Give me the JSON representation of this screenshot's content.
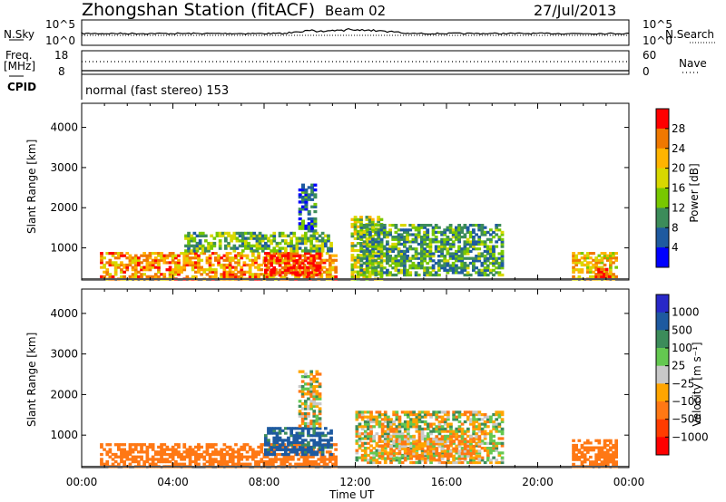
{
  "header": {
    "station": "Zhongshan Station (fitACF)",
    "beam": "Beam 02",
    "date": "27/Jul/2013"
  },
  "params": {
    "nsky_label": "N.Sky",
    "nsky_top": "10^5",
    "nsky_bottom": "10^0",
    "nsearch_label": "N.Search",
    "nsearch_top": "10^5",
    "nsearch_bottom": "10^0",
    "freq_label_1": "Freq.",
    "freq_label_2": "[MHz]",
    "freq_top": "18",
    "freq_bottom": "8",
    "nave_label": "Nave",
    "nave_top": "60",
    "nave_bottom": "0",
    "cpid_label": "CPID",
    "cpid_value": "normal (fast stereo) 153"
  },
  "panels": {
    "power": {
      "ylabel": "Slant Range [km]",
      "cbar_label": "Power [dB]",
      "cbar_ticks": [
        "28",
        "24",
        "20",
        "16",
        "12",
        "8",
        "4"
      ],
      "cbar_colors": [
        "#ff0000",
        "#f07800",
        "#ffb400",
        "#d8d800",
        "#78c800",
        "#3c8c5a",
        "#1e5aa0",
        "#0000ff"
      ]
    },
    "velocity": {
      "ylabel": "Slant Range [km]",
      "cbar_label": "Velocity [m s⁻¹]",
      "cbar_ticks": [
        "1000",
        "500",
        "100",
        "25",
        "−25",
        "−100",
        "−500",
        "−1000"
      ],
      "cbar_colors": [
        "#2828c8",
        "#1e5aa0",
        "#3c8c5a",
        "#64c850",
        "#c8c8c8",
        "#ffa500",
        "#ff7814",
        "#ff3c00",
        "#ff0000"
      ]
    },
    "xlabel": "Time UT"
  },
  "chart_data": [
    {
      "type": "heatmap",
      "title": "Power [dB]",
      "xlabel": "Time UT",
      "ylabel": "Slant Range [km]",
      "x_ticks": [
        "00:00",
        "04:00",
        "08:00",
        "12:00",
        "16:00",
        "20:00",
        "00:00"
      ],
      "y_ticks": [
        1000,
        2000,
        3000,
        4000
      ],
      "ylim": [
        200,
        4600
      ],
      "color_scale": [
        0,
        30
      ],
      "color_ticks": [
        4,
        8,
        12,
        16,
        20,
        24,
        28
      ],
      "regions": [
        {
          "t": [
            0.8,
            11.2
          ],
          "r": [
            200,
            900
          ],
          "value": 22
        },
        {
          "t": [
            8.0,
            10.5
          ],
          "r": [
            300,
            900
          ],
          "value": 28
        },
        {
          "t": [
            4.5,
            11.0
          ],
          "r": [
            900,
            1400
          ],
          "value": 12
        },
        {
          "t": [
            9.5,
            10.3
          ],
          "r": [
            1400,
            2600
          ],
          "value": 8
        },
        {
          "t": [
            11.8,
            13.2
          ],
          "r": [
            200,
            1800
          ],
          "value": 16
        },
        {
          "t": [
            12.2,
            18.5
          ],
          "r": [
            300,
            1600
          ],
          "value": 10
        },
        {
          "t": [
            21.5,
            23.5
          ],
          "r": [
            200,
            900
          ],
          "value": 20
        },
        {
          "t": [
            22.5,
            23.2
          ],
          "r": [
            200,
            500
          ],
          "value": 28
        }
      ]
    },
    {
      "type": "heatmap",
      "title": "Velocity [m s-1]",
      "xlabel": "Time UT",
      "ylabel": "Slant Range [km]",
      "x_ticks": [
        "00:00",
        "04:00",
        "08:00",
        "12:00",
        "16:00",
        "20:00",
        "00:00"
      ],
      "y_ticks": [
        1000,
        2000,
        3000,
        4000
      ],
      "ylim": [
        200,
        4600
      ],
      "color_ticks": [
        1000,
        500,
        100,
        25,
        -25,
        -100,
        -500,
        -1000
      ],
      "regions": [
        {
          "t": [
            0.8,
            11.2
          ],
          "r": [
            200,
            800
          ],
          "value": -300
        },
        {
          "t": [
            8.0,
            11.0
          ],
          "r": [
            500,
            1200
          ],
          "value": 600
        },
        {
          "t": [
            9.5,
            10.5
          ],
          "r": [
            1200,
            2600
          ],
          "value": 0
        },
        {
          "t": [
            12.0,
            18.5
          ],
          "r": [
            300,
            1600
          ],
          "value": 0
        },
        {
          "t": [
            13.0,
            17.5
          ],
          "r": [
            400,
            1000
          ],
          "value": -100
        },
        {
          "t": [
            21.5,
            23.5
          ],
          "r": [
            200,
            900
          ],
          "value": -300
        }
      ]
    }
  ]
}
